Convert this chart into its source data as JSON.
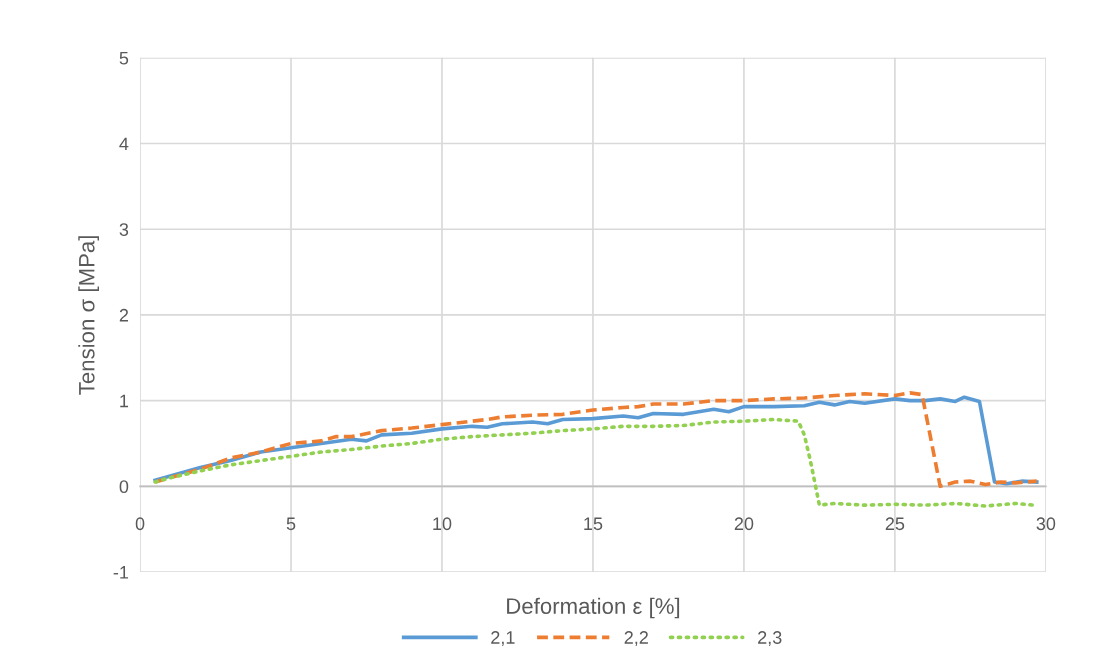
{
  "chart_data": {
    "type": "line",
    "xlabel": "Deformation ε [%]",
    "ylabel": "Tension σ [MPa]",
    "xlim": [
      0,
      30
    ],
    "xticks": [
      0,
      5,
      10,
      15,
      20,
      25,
      30
    ],
    "ylim": [
      -1,
      5
    ],
    "yticks": [
      -1,
      0,
      1,
      2,
      3,
      4,
      5
    ],
    "grid": true,
    "legend": "bottom",
    "marker": "none",
    "series": [
      {
        "name": "2,1",
        "color": "#5b9bd5",
        "line_style": "solid",
        "x": [
          0.5,
          1,
          2,
          3,
          4,
          5,
          6,
          7,
          7.5,
          8,
          9,
          10,
          11,
          11.5,
          12,
          13,
          13.5,
          14,
          15,
          16,
          16.5,
          17,
          18,
          19,
          19.5,
          20,
          21,
          22,
          22.5,
          23,
          23.5,
          24,
          25,
          25.5,
          26,
          26.5,
          27,
          27.3,
          27.8,
          28.3,
          28.7,
          29.2,
          29.7
        ],
        "values": [
          0.07,
          0.12,
          0.22,
          0.3,
          0.4,
          0.45,
          0.5,
          0.55,
          0.53,
          0.6,
          0.62,
          0.67,
          0.7,
          0.69,
          0.73,
          0.75,
          0.73,
          0.78,
          0.79,
          0.82,
          0.8,
          0.85,
          0.84,
          0.9,
          0.87,
          0.93,
          0.93,
          0.94,
          0.98,
          0.95,
          0.99,
          0.97,
          1.02,
          1.0,
          1.0,
          1.02,
          0.99,
          1.04,
          0.99,
          0.05,
          0.03,
          0.06,
          0.05
        ]
      },
      {
        "name": "2,2",
        "color": "#ed7d31",
        "line_style": "dashed",
        "x": [
          0.5,
          1,
          2,
          3,
          4,
          5,
          6,
          6.5,
          7,
          8,
          9,
          10,
          11,
          11.5,
          12,
          13,
          14,
          15,
          16,
          16.5,
          17,
          18,
          19,
          20,
          21,
          22,
          23,
          23.5,
          24,
          25,
          25.5,
          25.9,
          26.5,
          27,
          27.5,
          28,
          28.5,
          29,
          29.7
        ],
        "values": [
          0.05,
          0.1,
          0.2,
          0.33,
          0.4,
          0.5,
          0.53,
          0.58,
          0.58,
          0.65,
          0.68,
          0.72,
          0.76,
          0.78,
          0.81,
          0.83,
          0.84,
          0.89,
          0.92,
          0.93,
          0.96,
          0.96,
          1.0,
          1.0,
          1.02,
          1.03,
          1.06,
          1.07,
          1.08,
          1.06,
          1.09,
          1.07,
          0.0,
          0.05,
          0.06,
          0.02,
          0.05,
          0.04,
          0.06
        ]
      },
      {
        "name": "2,3",
        "color": "#92d050",
        "line_style": "dotted",
        "x": [
          0.5,
          1,
          2,
          3,
          4,
          5,
          6,
          7,
          8,
          9,
          10,
          11,
          12,
          13,
          14,
          15,
          16,
          17,
          18,
          19,
          20,
          21,
          21.8,
          22,
          22.2,
          22.5,
          23,
          24,
          25,
          26,
          27,
          28,
          29,
          29.6
        ],
        "values": [
          0.05,
          0.1,
          0.18,
          0.25,
          0.3,
          0.35,
          0.4,
          0.43,
          0.47,
          0.5,
          0.55,
          0.58,
          0.6,
          0.62,
          0.65,
          0.67,
          0.7,
          0.7,
          0.71,
          0.75,
          0.76,
          0.78,
          0.76,
          0.6,
          0.3,
          -0.22,
          -0.2,
          -0.22,
          -0.21,
          -0.22,
          -0.2,
          -0.23,
          -0.2,
          -0.22
        ]
      }
    ]
  }
}
